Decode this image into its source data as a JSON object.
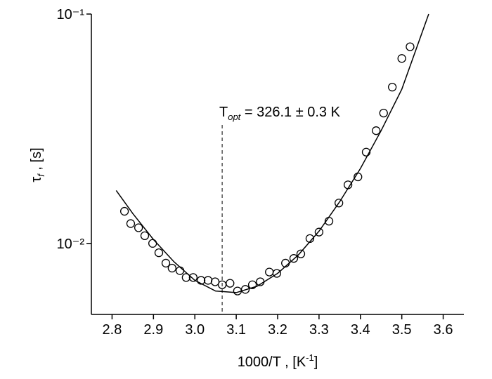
{
  "chart_data": {
    "type": "scatter",
    "x_label": [
      "1000/T , [K",
      "-1",
      "]"
    ],
    "y_label": [
      "τ",
      "f",
      " , [s]"
    ],
    "annotation": [
      "T",
      "opt",
      " = 326.1 ± 0.3 K"
    ],
    "vline_x": 3.066,
    "log_y": true,
    "xlim": [
      2.75,
      3.65
    ],
    "ylim": [
      0.0049,
      0.1
    ],
    "xticks": [
      2.8,
      2.9,
      {
        "value": 3.0,
        "label": "3.0"
      },
      3.1,
      3.2,
      3.3,
      3.4,
      3.5,
      3.6
    ],
    "yticks": [
      {
        "value": 0.01,
        "label": "10⁻²"
      },
      {
        "value": 0.1,
        "label": "10⁻¹"
      }
    ],
    "series": [
      {
        "kind": "points",
        "color": "#000000",
        "x": [
          2.83,
          2.845,
          2.864,
          2.879,
          2.898,
          2.913,
          2.93,
          2.945,
          2.964,
          2.979,
          2.996,
          3.015,
          3.032,
          3.049,
          3.066,
          3.085,
          3.103,
          3.122,
          3.139,
          3.158,
          3.18,
          3.198,
          3.219,
          3.239,
          3.256,
          3.278,
          3.3,
          3.324,
          3.348,
          3.37,
          3.394,
          3.414,
          3.438,
          3.456,
          3.477,
          3.5,
          3.52
        ],
        "values": [
          0.0138,
          0.0122,
          0.0117,
          0.0108,
          0.01,
          0.0091,
          0.0082,
          0.0078,
          0.0076,
          0.0071,
          0.0071,
          0.0069,
          0.0069,
          0.0068,
          0.0066,
          0.0067,
          0.0062,
          0.0063,
          0.0066,
          0.0068,
          0.0075,
          0.0074,
          0.0082,
          0.0086,
          0.009,
          0.0105,
          0.0112,
          0.0125,
          0.015,
          0.018,
          0.0195,
          0.025,
          0.031,
          0.037,
          0.048,
          0.064,
          0.072
        ]
      },
      {
        "kind": "line",
        "color": "#000000",
        "x": [
          2.81,
          2.85,
          2.9,
          2.95,
          3.0,
          3.05,
          3.1,
          3.15,
          3.2,
          3.25,
          3.3,
          3.35,
          3.4,
          3.45,
          3.5,
          3.565
        ],
        "values": [
          0.017,
          0.0135,
          0.0104,
          0.0083,
          0.0069,
          0.0062,
          0.0061,
          0.0065,
          0.0074,
          0.0089,
          0.0113,
          0.0152,
          0.0212,
          0.031,
          0.047,
          0.1
        ]
      }
    ]
  }
}
